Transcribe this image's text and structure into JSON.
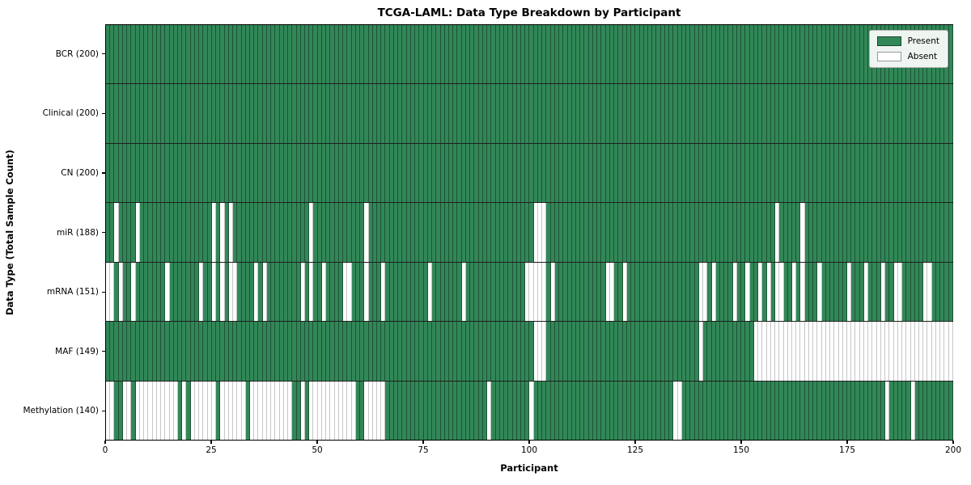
{
  "title": "TCGA-LAML: Data Type Breakdown by Participant",
  "xlabel": "Participant",
  "ylabel": "Data Type (Total Sample Count)",
  "legend": {
    "present_label": "Present",
    "absent_label": "Absent"
  },
  "colors": {
    "present": "#318757",
    "absent": "#ffffff",
    "grid_on_present": "rgba(0,0,0,0.38)",
    "grid_on_absent": "#c6c6c6",
    "row_divider": "#1f1f1f",
    "spine": "#000000"
  },
  "chart_data": {
    "type": "heatmap",
    "title": "TCGA-LAML: Data Type Breakdown by Participant",
    "xlabel": "Participant",
    "ylabel": "Data Type (Total Sample Count)",
    "legend_entries": [
      "Present",
      "Absent"
    ],
    "legend_position": "upper right",
    "x_range": [
      0,
      200
    ],
    "n_participants": 200,
    "x_ticks": [
      0,
      25,
      50,
      75,
      100,
      125,
      150,
      175,
      200
    ],
    "value_encoding": {
      "present": 1,
      "absent": 0
    },
    "rows": [
      {
        "label": "BCR (200)",
        "data_type": "BCR",
        "present_count": 200,
        "absent_participants": []
      },
      {
        "label": "Clinical (200)",
        "data_type": "Clinical",
        "present_count": 200,
        "absent_participants": []
      },
      {
        "label": "CN (200)",
        "data_type": "CN",
        "present_count": 200,
        "absent_participants": []
      },
      {
        "label": "miR (188)",
        "data_type": "miR",
        "present_count": 188,
        "absent_participants": [
          2,
          7,
          25,
          27,
          29,
          48,
          61,
          101,
          102,
          103,
          158,
          164
        ]
      },
      {
        "label": "mRNA (151)",
        "data_type": "mRNA",
        "present_count": 151,
        "absent_participants": [
          0,
          1,
          3,
          6,
          14,
          22,
          25,
          27,
          29,
          30,
          35,
          37,
          46,
          48,
          51,
          56,
          57,
          61,
          65,
          76,
          84,
          99,
          100,
          101,
          102,
          103,
          105,
          118,
          119,
          122,
          140,
          141,
          143,
          148,
          151,
          154,
          156,
          158,
          159,
          162,
          164,
          168,
          175,
          179,
          183,
          186,
          187,
          193,
          194
        ]
      },
      {
        "label": "MAF (149)",
        "data_type": "MAF",
        "present_count": 149,
        "absent_participants": [
          101,
          102,
          103,
          140,
          153,
          154,
          155,
          156,
          157,
          158,
          159,
          160,
          161,
          162,
          163,
          164,
          165,
          166,
          167,
          168,
          169,
          170,
          171,
          172,
          173,
          174,
          175,
          176,
          177,
          178,
          179,
          180,
          181,
          182,
          183,
          184,
          185,
          186,
          187,
          188,
          189,
          190,
          191,
          192,
          193,
          194,
          195,
          196,
          197,
          198,
          199
        ]
      },
      {
        "label": "Methylation (140)",
        "data_type": "Methylation",
        "present_count": 140,
        "absent_participants": [
          0,
          1,
          4,
          5,
          7,
          8,
          9,
          10,
          11,
          12,
          13,
          14,
          15,
          16,
          18,
          20,
          21,
          22,
          23,
          24,
          25,
          27,
          28,
          29,
          30,
          31,
          32,
          34,
          35,
          36,
          37,
          38,
          39,
          40,
          41,
          42,
          43,
          46,
          48,
          49,
          50,
          51,
          52,
          53,
          54,
          55,
          56,
          57,
          58,
          61,
          62,
          63,
          64,
          65,
          90,
          100,
          134,
          135,
          184,
          190
        ]
      }
    ]
  }
}
